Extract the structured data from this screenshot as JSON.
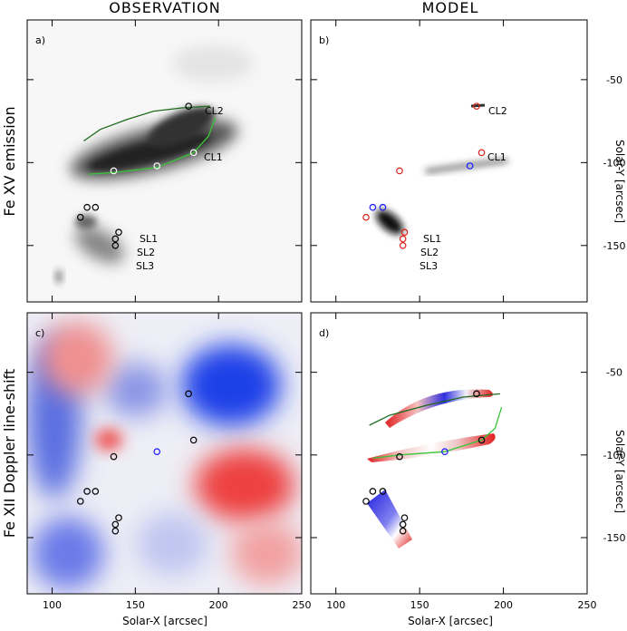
{
  "chart_data": [
    {
      "type": "scatter",
      "title": "OBSERVATION",
      "ylabel": "Fe XV emission",
      "panel_label": "a)",
      "annotations": [
        "CL2",
        "CL1",
        "SL1",
        "SL2",
        "SL3"
      ],
      "xlim": [
        85,
        250
      ],
      "ylim": [
        -184,
        -14
      ],
      "xticks": [
        100,
        150,
        200,
        250
      ],
      "yticks": [
        -50,
        -100,
        -150
      ],
      "xtick_labels": false,
      "ytick_labels": "none",
      "points": {
        "x": [
          182,
          185,
          163,
          137,
          121,
          126,
          117,
          140,
          138,
          138
        ],
        "y": [
          -66,
          -94,
          -102,
          -105,
          -127,
          -127,
          -133,
          -142,
          -146,
          -150
        ],
        "colors": [
          "#000000",
          "#ffffff",
          "#ffffff",
          "#ffffff",
          "#000000",
          "#000000",
          "#000000",
          "#000000",
          "#000000",
          "#000000"
        ]
      },
      "lines": [
        {
          "color": "#1d6b1d",
          "x": [
            119,
            129,
            145,
            161,
            178,
            195
          ],
          "y": [
            -87,
            -80,
            -74,
            -69,
            -67,
            -66
          ]
        },
        {
          "color": "#36c636",
          "x": [
            122,
            137,
            163,
            185,
            194,
            198
          ],
          "y": [
            -107,
            -106,
            -103,
            -94,
            -84,
            -73
          ]
        }
      ]
    },
    {
      "type": "scatter",
      "title": "MODEL",
      "y2label": "Solar-Y [arcsec]",
      "panel_label": "b)",
      "annotations": [
        "CL2",
        "CL1",
        "SL1",
        "SL2",
        "SL3"
      ],
      "xlim": [
        85,
        250
      ],
      "ylim": [
        -184,
        -14
      ],
      "xticks": [
        100,
        150,
        200,
        250
      ],
      "yticks": [
        -50,
        -100,
        -150
      ],
      "xtick_labels": false,
      "ytick_labels": "right",
      "points": {
        "x": [
          184,
          187,
          180,
          138,
          122,
          128,
          118,
          141,
          140,
          140
        ],
        "y": [
          -66,
          -94,
          -102,
          -105,
          -127,
          -127,
          -133,
          -142,
          -146,
          -150
        ],
        "colors": [
          "#e0201b",
          "#e0201b",
          "#1a1aff",
          "#e0201b",
          "#1a1aff",
          "#1a1aff",
          "#e0201b",
          "#e0201b",
          "#e0201b",
          "#e0201b"
        ]
      },
      "lines": []
    },
    {
      "type": "scatter",
      "ylabel": "Fe XII Doppler line-shift",
      "xlabel": "Solar-X [arcsec]",
      "panel_label": "c)",
      "annotations": [],
      "xlim": [
        85,
        250
      ],
      "ylim": [
        -184,
        -14
      ],
      "xticks": [
        100,
        150,
        200,
        250
      ],
      "yticks": [
        -50,
        -100,
        -150
      ],
      "xtick_labels": true,
      "ytick_labels": "none",
      "points": {
        "x": [
          182,
          185,
          163,
          137,
          121,
          126,
          117,
          140,
          138,
          138
        ],
        "y": [
          -63,
          -91,
          -98,
          -101,
          -122,
          -122,
          -128,
          -138,
          -142,
          -146
        ],
        "colors": [
          "#000000",
          "#000000",
          "#1a1aff",
          "#000000",
          "#000000",
          "#000000",
          "#000000",
          "#000000",
          "#000000",
          "#000000"
        ]
      },
      "lines": []
    },
    {
      "type": "scatter",
      "xlabel": "Solar-X [arcsec]",
      "y2label": "Solar-Y [arcsec]",
      "panel_label": "d)",
      "annotations": [],
      "xlim": [
        85,
        250
      ],
      "ylim": [
        -184,
        -14
      ],
      "xticks": [
        100,
        150,
        200,
        250
      ],
      "yticks": [
        -50,
        -100,
        -150
      ],
      "xtick_labels": true,
      "ytick_labels": "right",
      "points": {
        "x": [
          184,
          187,
          165,
          138,
          122,
          128,
          118,
          141,
          140,
          140
        ],
        "y": [
          -63,
          -91,
          -98,
          -101,
          -122,
          -122,
          -128,
          -138,
          -142,
          -146
        ],
        "colors": [
          "#000000",
          "#000000",
          "#1a1aff",
          "#000000",
          "#000000",
          "#000000",
          "#000000",
          "#000000",
          "#000000",
          "#000000"
        ]
      },
      "lines": [
        {
          "color": "#1d6b1d",
          "x": [
            120,
            132,
            154,
            176,
            198
          ],
          "y": [
            -82,
            -76,
            -70,
            -65,
            -63
          ]
        },
        {
          "color": "#36c636",
          "x": [
            122,
            138,
            165,
            187,
            195,
            199
          ],
          "y": [
            -102,
            -100,
            -98,
            -91,
            -84,
            -71
          ]
        }
      ]
    }
  ]
}
